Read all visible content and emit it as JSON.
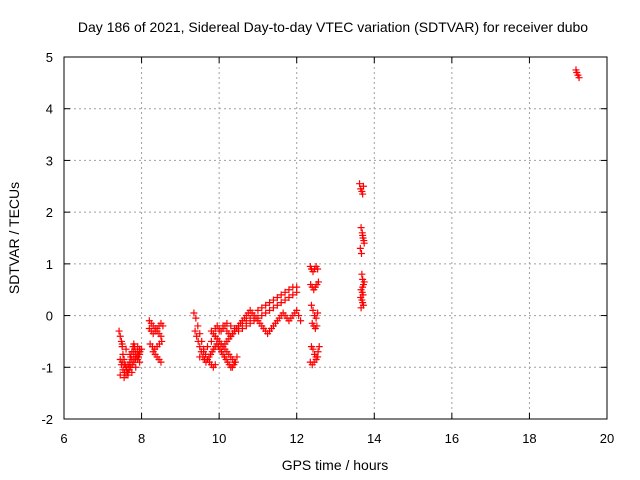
{
  "chart_data": {
    "type": "scatter",
    "title": "Day 186 of 2021, Sidereal Day-to-day VTEC variation (SDTVAR) for receiver dubo",
    "xlabel": "GPS time / hours",
    "ylabel": "SDTVAR / TECUs",
    "xlim": [
      6,
      20
    ],
    "ylim": [
      -2,
      5
    ],
    "xticks": [
      "6",
      "8",
      "10",
      "12",
      "14",
      "16",
      "18",
      "20"
    ],
    "yticks": [
      "-2",
      "-1",
      "0",
      "1",
      "2",
      "3",
      "4",
      "5"
    ],
    "grid": true,
    "legend": "none",
    "marker": "plus",
    "color": "#ff0000",
    "series": [
      {
        "x": [
          7.42,
          7.45,
          7.48,
          7.5,
          7.52,
          7.55,
          7.58,
          7.6,
          7.62,
          7.65,
          7.68,
          7.7,
          7.72,
          7.75,
          7.78,
          7.8,
          7.82,
          7.85,
          7.88,
          7.9,
          7.92,
          7.95,
          7.5,
          7.55,
          7.6,
          7.65,
          7.7,
          7.75,
          7.8,
          7.85,
          7.9,
          7.95,
          7.45,
          7.48,
          7.52,
          7.56,
          7.6,
          7.64,
          7.68,
          7.72,
          7.76,
          7.8,
          7.84,
          7.88,
          7.92,
          7.96,
          8.0,
          7.5,
          7.6,
          7.7,
          7.8,
          7.9,
          7.45,
          7.55,
          7.65,
          7.75,
          7.85,
          7.95,
          8.2,
          8.25,
          8.3,
          8.35,
          8.4,
          8.45,
          8.5,
          8.55,
          8.22,
          8.28,
          8.34,
          8.4,
          8.46,
          8.52,
          8.2,
          8.25,
          8.3,
          8.35,
          8.4,
          8.45,
          8.5,
          8.4,
          8.45,
          8.5,
          8.3,
          8.35,
          9.35,
          9.4,
          9.45,
          9.5,
          9.55,
          9.6,
          9.65,
          9.7,
          9.75,
          9.8,
          9.85,
          9.9,
          9.38,
          9.42,
          9.46,
          9.5,
          9.54,
          9.58,
          9.62,
          9.66,
          9.7,
          9.74,
          9.78,
          9.82,
          9.86,
          9.9,
          9.94,
          9.98,
          10.02,
          10.06,
          10.1,
          10.14,
          10.18,
          10.22,
          10.26,
          10.3,
          10.34,
          10.38,
          10.42,
          10.46,
          9.9,
          9.95,
          10.0,
          10.05,
          10.1,
          10.15,
          10.2,
          10.25,
          10.3,
          10.35,
          10.4,
          10.45,
          10.5,
          10.55,
          10.6,
          10.65,
          10.7,
          10.75,
          10.8,
          10.85,
          10.9,
          10.95,
          11.0,
          11.05,
          11.1,
          11.15,
          11.2,
          11.25,
          11.3,
          11.35,
          11.4,
          11.45,
          11.5,
          11.55,
          11.6,
          11.65,
          11.7,
          11.75,
          11.8,
          11.85,
          11.9,
          11.95,
          12.0,
          12.05,
          12.1,
          10.0,
          10.05,
          10.1,
          10.15,
          10.2,
          10.25,
          10.3,
          10.35,
          10.4,
          10.45,
          10.5,
          10.6,
          10.7,
          10.8,
          10.9,
          11.0,
          11.1,
          11.2,
          11.3,
          11.4,
          11.5,
          11.6,
          11.7,
          11.8,
          11.9,
          12.0,
          9.8,
          9.85,
          9.9,
          9.95,
          10.0,
          10.05,
          10.1,
          10.15,
          10.2,
          10.25,
          10.3,
          10.35,
          10.4,
          9.5,
          9.6,
          9.7,
          9.8,
          9.9,
          10.0,
          10.1,
          10.2,
          10.3,
          10.4,
          10.5,
          10.6,
          10.7,
          10.8,
          10.9,
          11.0,
          11.1,
          11.2,
          11.3,
          11.4,
          11.5,
          11.6,
          11.7,
          11.8,
          11.9,
          12.0,
          12.35,
          12.38,
          12.42,
          12.46,
          12.5,
          12.54,
          12.36,
          12.4,
          12.44,
          12.48,
          12.52,
          12.56,
          12.38,
          12.42,
          12.46,
          12.5,
          12.54,
          12.4,
          12.44,
          12.48,
          12.52,
          12.35,
          12.4,
          12.45,
          12.5,
          12.55,
          12.38,
          12.42,
          12.46,
          12.5,
          12.54,
          12.58,
          13.62,
          13.65,
          13.68,
          13.7,
          13.72,
          13.66,
          13.69,
          13.71,
          13.74,
          13.64,
          13.67,
          13.7,
          13.73,
          13.68,
          13.7,
          13.72,
          13.66,
          13.69,
          13.71,
          13.65,
          13.68,
          13.7,
          13.72,
          13.66,
          13.7,
          13.74,
          19.2,
          19.22,
          19.25,
          19.28
        ],
        "y": [
          -0.3,
          -0.4,
          -0.5,
          -0.6,
          -0.75,
          -0.85,
          -0.95,
          -1.0,
          -1.05,
          -1.1,
          -1.0,
          -0.9,
          -0.8,
          -0.7,
          -0.6,
          -0.55,
          -0.6,
          -0.7,
          -0.8,
          -0.85,
          -0.8,
          -0.75,
          -0.9,
          -0.95,
          -1.0,
          -0.95,
          -0.9,
          -0.85,
          -0.8,
          -0.75,
          -0.7,
          -0.65,
          -0.85,
          -0.95,
          -1.05,
          -1.1,
          -1.15,
          -1.1,
          -1.05,
          -1.0,
          -0.95,
          -0.9,
          -0.85,
          -0.8,
          -0.75,
          -0.7,
          -0.65,
          -0.55,
          -0.65,
          -0.75,
          -0.7,
          -0.6,
          -1.15,
          -1.2,
          -1.15,
          -1.1,
          -1.0,
          -0.9,
          -0.25,
          -0.3,
          -0.35,
          -0.3,
          -0.25,
          -0.2,
          -0.15,
          -0.2,
          -0.55,
          -0.6,
          -0.65,
          -0.6,
          -0.55,
          -0.5,
          -0.1,
          -0.15,
          -0.2,
          -0.25,
          -0.3,
          -0.35,
          -0.4,
          -0.8,
          -0.85,
          -0.9,
          -0.7,
          -0.75,
          0.05,
          -0.05,
          -0.2,
          -0.35,
          -0.5,
          -0.65,
          -0.75,
          -0.85,
          -0.9,
          -0.95,
          -1.0,
          -0.95,
          -0.3,
          -0.4,
          -0.5,
          -0.6,
          -0.7,
          -0.8,
          -0.85,
          -0.9,
          -0.85,
          -0.8,
          -0.75,
          -0.7,
          -0.65,
          -0.6,
          -0.55,
          -0.6,
          -0.65,
          -0.7,
          -0.75,
          -0.8,
          -0.85,
          -0.9,
          -0.95,
          -1.0,
          -1.0,
          -0.95,
          -0.9,
          -0.8,
          -0.25,
          -0.2,
          -0.25,
          -0.3,
          -0.25,
          -0.2,
          -0.3,
          -0.35,
          -0.4,
          -0.35,
          -0.3,
          -0.25,
          -0.2,
          -0.15,
          -0.1,
          -0.05,
          0.0,
          0.05,
          0.1,
          0.05,
          0.0,
          -0.05,
          -0.1,
          -0.15,
          -0.2,
          -0.25,
          -0.3,
          -0.35,
          -0.3,
          -0.25,
          -0.2,
          -0.15,
          -0.1,
          -0.05,
          0.0,
          0.05,
          0.0,
          -0.05,
          -0.1,
          -0.05,
          0.0,
          0.05,
          0.1,
          0.0,
          -0.1,
          -0.5,
          -0.55,
          -0.6,
          -0.55,
          -0.5,
          -0.45,
          -0.4,
          -0.35,
          -0.3,
          -0.25,
          -0.2,
          -0.15,
          -0.1,
          -0.05,
          0.0,
          0.1,
          0.15,
          0.2,
          0.25,
          0.3,
          0.35,
          0.4,
          0.45,
          0.5,
          0.55,
          0.55,
          -0.3,
          -0.35,
          -0.4,
          -0.45,
          -0.5,
          -0.55,
          -0.6,
          -0.65,
          -0.7,
          -0.75,
          -0.8,
          -0.85,
          -0.9,
          -0.8,
          -0.7,
          -0.6,
          -0.5,
          -0.4,
          -0.3,
          -0.2,
          -0.15,
          -0.2,
          -0.25,
          -0.3,
          -0.25,
          -0.2,
          -0.15,
          -0.1,
          -0.05,
          0.0,
          0.05,
          0.1,
          0.15,
          0.2,
          0.25,
          0.3,
          0.35,
          0.4,
          0.45,
          0.95,
          0.9,
          0.85,
          0.9,
          0.95,
          0.9,
          0.6,
          0.55,
          0.5,
          0.55,
          0.6,
          0.65,
          0.2,
          0.1,
          0.0,
          -0.05,
          0.05,
          -0.15,
          -0.2,
          -0.25,
          -0.2,
          -0.9,
          -0.95,
          -0.9,
          -0.8,
          -0.7,
          -0.6,
          -0.65,
          -0.75,
          -0.85,
          -0.8,
          -0.6,
          2.55,
          2.45,
          2.4,
          2.35,
          2.5,
          1.7,
          1.6,
          1.5,
          1.4,
          1.3,
          1.2,
          1.55,
          1.45,
          0.8,
          0.7,
          0.6,
          0.5,
          0.45,
          0.4,
          0.35,
          0.3,
          0.25,
          0.2,
          0.15,
          0.55,
          0.65,
          4.75,
          4.7,
          4.65,
          4.6
        ]
      }
    ]
  }
}
